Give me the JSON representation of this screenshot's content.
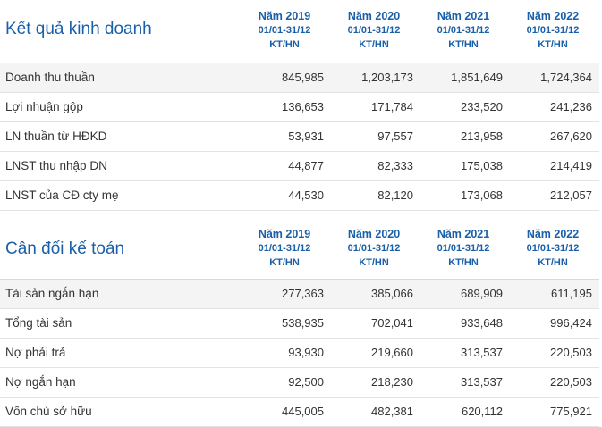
{
  "business": {
    "title": "Kết quả kinh doanh",
    "columns": [
      {
        "year": "Năm 2019",
        "period": "01/01-31/12",
        "unit": "KT/HN"
      },
      {
        "year": "Năm 2020",
        "period": "01/01-31/12",
        "unit": "KT/HN"
      },
      {
        "year": "Năm 2021",
        "period": "01/01-31/12",
        "unit": "KT/HN"
      },
      {
        "year": "Năm 2022",
        "period": "01/01-31/12",
        "unit": "KT/HN"
      }
    ],
    "rows": [
      {
        "label": "Doanh thu thuần",
        "values": [
          "845,985",
          "1,203,173",
          "1,851,649",
          "1,724,364"
        ]
      },
      {
        "label": "Lợi nhuận gộp",
        "values": [
          "136,653",
          "171,784",
          "233,520",
          "241,236"
        ]
      },
      {
        "label": "LN thuần từ HĐKD",
        "values": [
          "53,931",
          "97,557",
          "213,958",
          "267,620"
        ]
      },
      {
        "label": "LNST thu nhập DN",
        "values": [
          "44,877",
          "82,333",
          "175,038",
          "214,419"
        ]
      },
      {
        "label": "LNST của CĐ cty mẹ",
        "values": [
          "44,530",
          "82,120",
          "173,068",
          "212,057"
        ]
      }
    ]
  },
  "balance": {
    "title": "Cân đối kế toán",
    "columns": [
      {
        "year": "Năm 2019",
        "period": "01/01-31/12",
        "unit": "KT/HN"
      },
      {
        "year": "Năm 2020",
        "period": "01/01-31/12",
        "unit": "KT/HN"
      },
      {
        "year": "Năm 2021",
        "period": "01/01-31/12",
        "unit": "KT/HN"
      },
      {
        "year": "Năm 2022",
        "period": "01/01-31/12",
        "unit": "KT/HN"
      }
    ],
    "rows": [
      {
        "label": "Tài sản ngắn hạn",
        "values": [
          "277,363",
          "385,066",
          "689,909",
          "611,195"
        ]
      },
      {
        "label": "Tổng tài sản",
        "values": [
          "538,935",
          "702,041",
          "933,648",
          "996,424"
        ]
      },
      {
        "label": "Nợ phải trả",
        "values": [
          "93,930",
          "219,660",
          "313,537",
          "220,503"
        ]
      },
      {
        "label": "Nợ ngắn hạn",
        "values": [
          "92,500",
          "218,230",
          "313,537",
          "220,503"
        ]
      },
      {
        "label": "Vốn chủ sở hữu",
        "values": [
          "445,005",
          "482,381",
          "620,112",
          "775,921"
        ]
      }
    ]
  }
}
